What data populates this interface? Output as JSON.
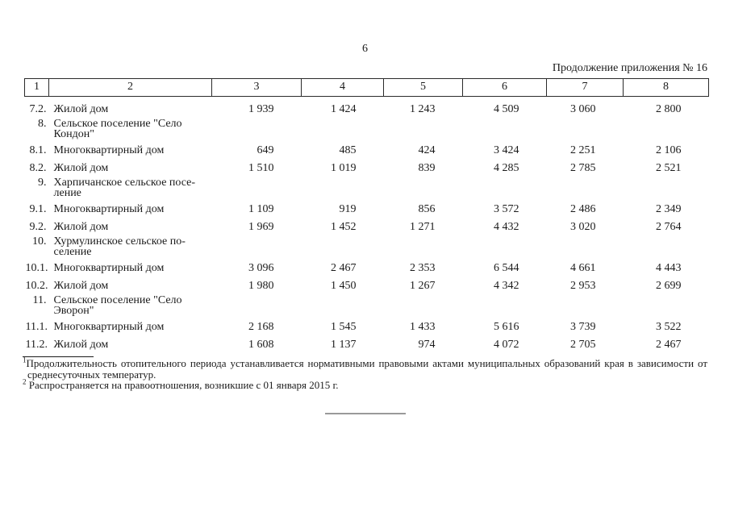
{
  "page": {
    "number": "6",
    "continuation": "Продолжение приложения № 16"
  },
  "table": {
    "header_cols": [
      "1",
      "2",
      "3",
      "4",
      "5",
      "6",
      "7",
      "8"
    ],
    "rows": [
      {
        "num": "7.2.",
        "label": "Жилой дом",
        "values": [
          "1 939",
          "1 424",
          "1 243",
          "4 509",
          "3 060",
          "2 800"
        ]
      },
      {
        "num": "8.",
        "label": "Сельское поселение \"Село\nКондон\"",
        "values": []
      },
      {
        "num": "8.1.",
        "label": "Многоквартирный дом",
        "values": [
          "649",
          "485",
          "424",
          "3 424",
          "2 251",
          "2 106"
        ]
      },
      {
        "num": "8.2.",
        "label": "Жилой дом",
        "values": [
          "1 510",
          "1 019",
          "839",
          "4 285",
          "2 785",
          "2 521"
        ]
      },
      {
        "num": "9.",
        "label": "Харпичанское сельское посе-\nление",
        "values": []
      },
      {
        "num": "9.1.",
        "label": "Многоквартирный дом",
        "values": [
          "1 109",
          "919",
          "856",
          "3 572",
          "2 486",
          "2 349"
        ]
      },
      {
        "num": "9.2.",
        "label": "Жилой дом",
        "values": [
          "1 969",
          "1 452",
          "1 271",
          "4 432",
          "3 020",
          "2 764"
        ]
      },
      {
        "num": "10.",
        "label": "Хурмулинское сельское по-\nселение",
        "values": []
      },
      {
        "num": "10.1.",
        "label": "Многоквартирный дом",
        "values": [
          "3 096",
          "2 467",
          "2 353",
          "6 544",
          "4 661",
          "4 443"
        ]
      },
      {
        "num": "10.2.",
        "label": "Жилой дом",
        "values": [
          "1 980",
          "1 450",
          "1 267",
          "4 342",
          "2 953",
          "2 699"
        ]
      },
      {
        "num": "11.",
        "label": "Сельское поселение \"Село\nЭворон\"",
        "values": []
      },
      {
        "num": "11.1.",
        "label": "Многоквартирный дом",
        "values": [
          "2 168",
          "1 545",
          "1 433",
          "5 616",
          "3 739",
          "3 522"
        ]
      },
      {
        "num": "11.2.",
        "label": "Жилой дом",
        "values": [
          "1 608",
          "1 137",
          "974",
          "4 072",
          "2 705",
          "2 467"
        ]
      }
    ]
  },
  "footnotes": [
    {
      "marker": "1",
      "text": "Продолжительность отопительного периода устанавливается нормативными правовыми актами муниципальных образований края в зависимости от среднесуточных температур."
    },
    {
      "marker": "2",
      "text": "Распространяется на правоотношения, возникшие с 01 января 2015 г."
    }
  ],
  "colors": {
    "text": "#1b1b1b",
    "table_border": "#2a2a2a",
    "end_line": "#9a9a9a"
  }
}
